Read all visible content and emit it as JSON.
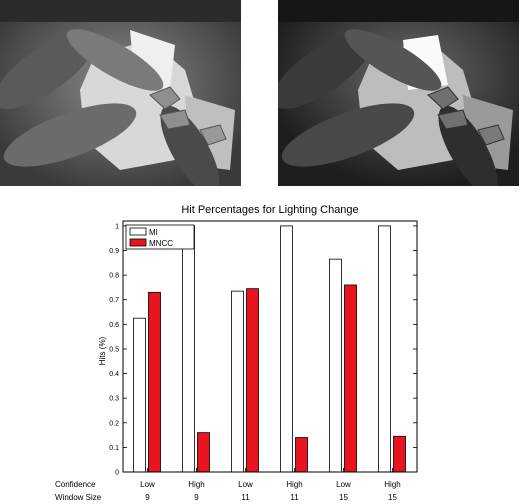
{
  "photos": [
    {
      "caption": ""
    },
    {
      "caption": ""
    }
  ],
  "chart_data": {
    "type": "bar",
    "title": "Hit Percentages for Lighting Change",
    "xlabel": "",
    "ylabel": "Hits (%)",
    "ylim": [
      0,
      1.02
    ],
    "yticks": [
      "0",
      "0.1",
      "0.2",
      "0.3",
      "0.4",
      "0.5",
      "0.6",
      "0.7",
      "0.8",
      "0.9",
      "1"
    ],
    "row_labels": [
      "Confidence",
      "Window Size"
    ],
    "categories": [
      {
        "confidence": "Low",
        "window": "9"
      },
      {
        "confidence": "High",
        "window": "9"
      },
      {
        "confidence": "Low",
        "window": "11"
      },
      {
        "confidence": "High",
        "window": "11"
      },
      {
        "confidence": "Low",
        "window": "15"
      },
      {
        "confidence": "High",
        "window": "15"
      }
    ],
    "series": [
      {
        "name": "MI",
        "color": "#ffffff",
        "values": [
          0.625,
          1.0,
          0.735,
          1.0,
          0.865,
          1.0
        ]
      },
      {
        "name": "MNCC",
        "color": "#e8141e",
        "values": [
          0.73,
          0.16,
          0.745,
          0.14,
          0.76,
          0.145
        ]
      }
    ],
    "legend": "top-left",
    "grid": false
  }
}
